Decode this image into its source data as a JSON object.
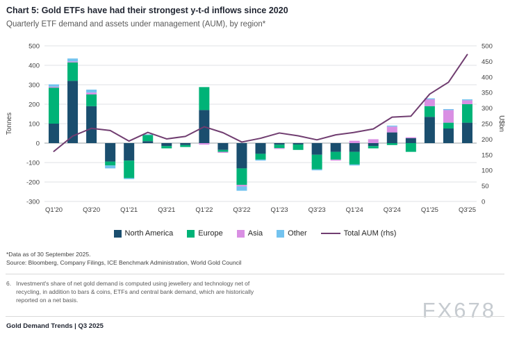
{
  "header": {
    "title": "Chart 5: Gold ETFs have had their strongest y-t-d inflows since 2020",
    "subtitle": "Quarterly ETF demand and assets under management (AUM), by region*"
  },
  "chart_data": {
    "type": "stacked-bar+line",
    "categories": [
      "Q1'20",
      "Q2'20",
      "Q3'20",
      "Q4'20",
      "Q1'21",
      "Q2'21",
      "Q3'21",
      "Q4'21",
      "Q1'22",
      "Q2'22",
      "Q3'22",
      "Q4'22",
      "Q1'23",
      "Q2'23",
      "Q3'23",
      "Q4'23",
      "Q1'24",
      "Q2'24",
      "Q3'24",
      "Q4'24",
      "Q1'25",
      "Q2'25",
      "Q3'25"
    ],
    "xtick_every": 2,
    "series": [
      {
        "name": "North America",
        "color": "#1a4e6e",
        "values": [
          100,
          320,
          190,
          -95,
          -90,
          10,
          -15,
          -10,
          170,
          -35,
          -130,
          -55,
          -8,
          -7,
          -60,
          -45,
          -45,
          -15,
          55,
          25,
          135,
          75,
          105
        ]
      },
      {
        "name": "Europe",
        "color": "#00b377",
        "values": [
          185,
          95,
          60,
          -20,
          -90,
          32,
          -12,
          -10,
          118,
          -10,
          -85,
          -30,
          -18,
          -28,
          -75,
          -40,
          -65,
          -12,
          -10,
          -45,
          55,
          30,
          95
        ]
      },
      {
        "name": "Asia",
        "color": "#d98fe3",
        "values": [
          5,
          5,
          10,
          0,
          0,
          0,
          0,
          0,
          -8,
          -5,
          -8,
          0,
          -4,
          0,
          0,
          -5,
          12,
          20,
          30,
          5,
          35,
          65,
          20
        ]
      },
      {
        "name": "Other",
        "color": "#73c3ef",
        "values": [
          12,
          15,
          15,
          -15,
          -5,
          3,
          0,
          0,
          0,
          0,
          -22,
          -5,
          0,
          0,
          -5,
          0,
          -5,
          0,
          5,
          0,
          5,
          5,
          5
        ]
      }
    ],
    "line_series": {
      "name": "Total AUM (rhs)",
      "color": "#703d70",
      "values": [
        161,
        210,
        235,
        228,
        194,
        222,
        201,
        209,
        240,
        221,
        191,
        203,
        220,
        211,
        198,
        214,
        222,
        233,
        271,
        274,
        345,
        383,
        472
      ]
    },
    "left_axis": {
      "label": "Tonnes",
      "min": -300,
      "max": 500,
      "step": 100
    },
    "right_axis": {
      "label": "U$bn",
      "min": 0,
      "max": 500,
      "step": 50
    },
    "grid_color": "#dfe2e5",
    "zero_line_color": "#9aa0a6",
    "axis_text_color": "#404040",
    "legend_position": "bottom"
  },
  "footnotes": {
    "data_note": "*Data as of 30 September 2025.",
    "source": "Source: Bloomberg, Company Filings, ICE Benchmark Administration, World Gold Council"
  },
  "note": {
    "number": "6.",
    "text": "Investment's share of net gold demand is computed using jewellery and technology net of recycling, in addition to bars & coins, ETFs and central bank demand, which are historically reported on a net basis."
  },
  "watermark": {
    "text": "FX678"
  },
  "footer": {
    "text": "Gold Demand Trends | Q3 2025"
  }
}
